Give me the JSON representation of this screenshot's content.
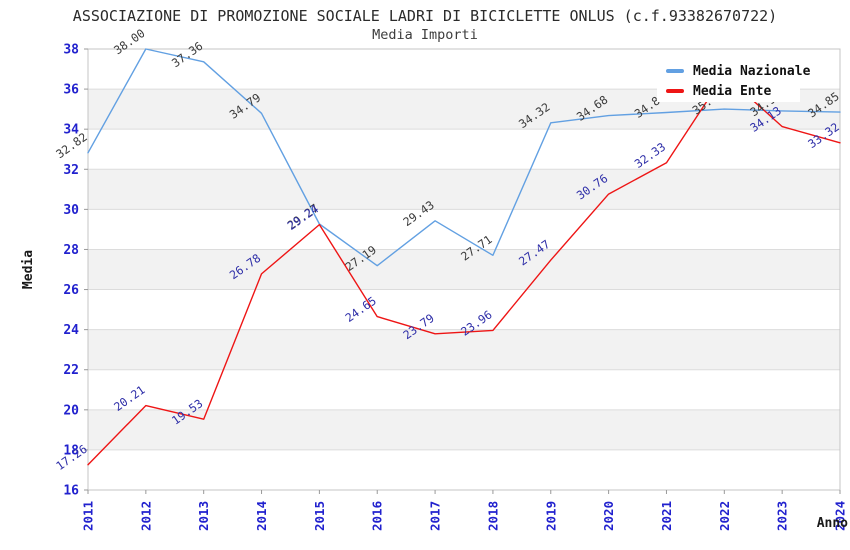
{
  "chart_data": {
    "type": "line",
    "title": "ASSOCIAZIONE DI PROMOZIONE SOCIALE LADRI DI BICICLETTE ONLUS (c.f.93382670722)",
    "subtitle": "Media Importi",
    "xlabel": "Anno",
    "ylabel": "Media",
    "x": [
      "2011",
      "2012",
      "2013",
      "2014",
      "2015",
      "2016",
      "2017",
      "2018",
      "2019",
      "2020",
      "2021",
      "2022",
      "2023",
      "2024"
    ],
    "ylim": [
      16,
      38
    ],
    "ytick_step": 2,
    "grid": "horizontal gridlines every 2 units with alternating light-gray bands",
    "legend_position": "top-right",
    "series": [
      {
        "name": "Media Nazionale",
        "color": "#62A0E2",
        "label_color": "#3A3A3A",
        "values": [
          32.82,
          38.0,
          37.36,
          34.79,
          29.27,
          27.19,
          29.43,
          27.71,
          34.32,
          34.68,
          34.83,
          35.0,
          34.91,
          34.85
        ]
      },
      {
        "name": "Media Ente",
        "color": "#EE1515",
        "label_color": "#2E2EA8",
        "values": [
          17.26,
          20.21,
          19.53,
          26.78,
          29.24,
          24.65,
          23.79,
          23.96,
          27.47,
          30.76,
          32.33,
          36.72,
          34.13,
          33.32
        ]
      }
    ],
    "colors": {
      "tick_label": "#2121CE",
      "band": "#F2F2F2",
      "gridline": "#DCDCDC",
      "plot_border": "#C4C4C4",
      "axis_title": "#1A1A1A",
      "title_text": "#2B2B2B"
    }
  }
}
